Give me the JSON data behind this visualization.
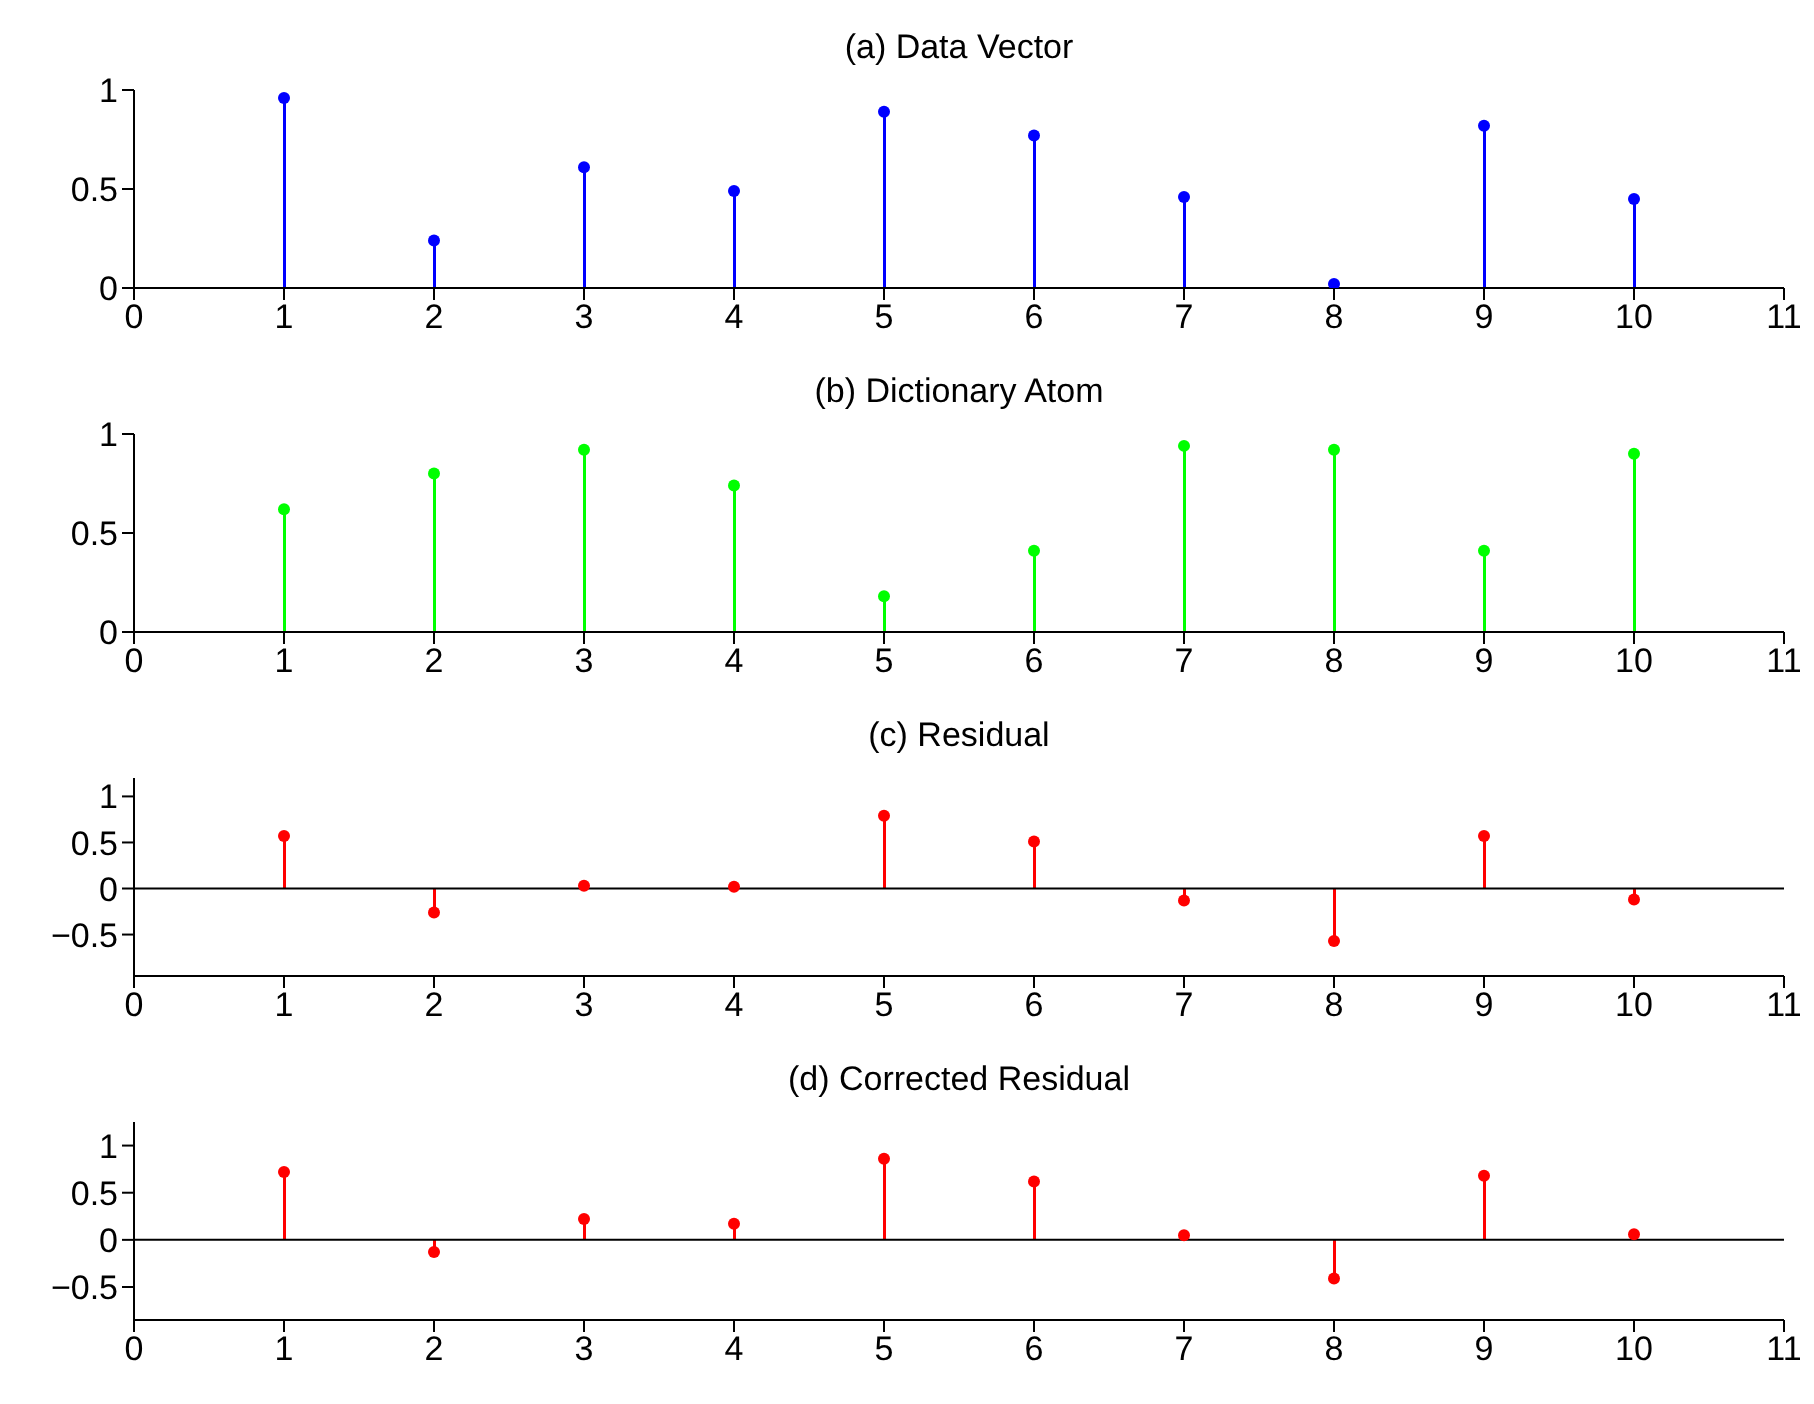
{
  "chart_data": [
    {
      "type": "lollipop",
      "title": "(a) Data Vector",
      "x": [
        1,
        2,
        3,
        4,
        5,
        6,
        7,
        8,
        9,
        10
      ],
      "color": "#0000ff",
      "marker": "circle",
      "values": [
        0.96,
        0.24,
        0.61,
        0.49,
        0.89,
        0.77,
        0.46,
        0.02,
        0.82,
        0.45
      ],
      "xlim": [
        0,
        11
      ],
      "xticks": [
        0,
        1,
        2,
        3,
        4,
        5,
        6,
        7,
        8,
        9,
        10,
        11
      ],
      "ylim": [
        0,
        1
      ],
      "yticks": [
        0,
        0.5,
        1
      ]
    },
    {
      "type": "lollipop",
      "title": "(b) Dictionary Atom",
      "x": [
        1,
        2,
        3,
        4,
        5,
        6,
        7,
        8,
        9,
        10
      ],
      "color": "#00ff00",
      "marker": "circle",
      "values": [
        0.62,
        0.8,
        0.92,
        0.74,
        0.18,
        0.41,
        0.94,
        0.92,
        0.41,
        0.9
      ],
      "xlim": [
        0,
        11
      ],
      "xticks": [
        0,
        1,
        2,
        3,
        4,
        5,
        6,
        7,
        8,
        9,
        10,
        11
      ],
      "ylim": [
        0,
        1
      ],
      "yticks": [
        0,
        0.5,
        1
      ]
    },
    {
      "type": "lollipop",
      "title": "(c) Residual",
      "x": [
        1,
        2,
        3,
        4,
        5,
        6,
        7,
        8,
        9,
        10
      ],
      "color": "#ff0000",
      "marker": "circle",
      "values": [
        0.57,
        -0.26,
        0.03,
        0.02,
        0.79,
        0.51,
        -0.13,
        -0.57,
        0.57,
        -0.12
      ],
      "xlim": [
        0,
        11
      ],
      "xticks": [
        0,
        1,
        2,
        3,
        4,
        5,
        6,
        7,
        8,
        9,
        10,
        11
      ],
      "ylim": [
        -0.95,
        1.2
      ],
      "yticks": [
        -0.5,
        0,
        0.5,
        1
      ]
    },
    {
      "type": "lollipop",
      "title": "(d) Corrected Residual",
      "x": [
        1,
        2,
        3,
        4,
        5,
        6,
        7,
        8,
        9,
        10
      ],
      "color": "#ff0000",
      "marker": "circle",
      "values": [
        0.72,
        -0.13,
        0.22,
        0.17,
        0.86,
        0.62,
        0.05,
        -0.41,
        0.68,
        0.06
      ],
      "xlim": [
        0,
        11
      ],
      "xticks": [
        0,
        1,
        2,
        3,
        4,
        5,
        6,
        7,
        8,
        9,
        10,
        11
      ],
      "ylim": [
        -0.85,
        1.25
      ],
      "yticks": [
        -0.5,
        0,
        0.5,
        1
      ]
    }
  ]
}
